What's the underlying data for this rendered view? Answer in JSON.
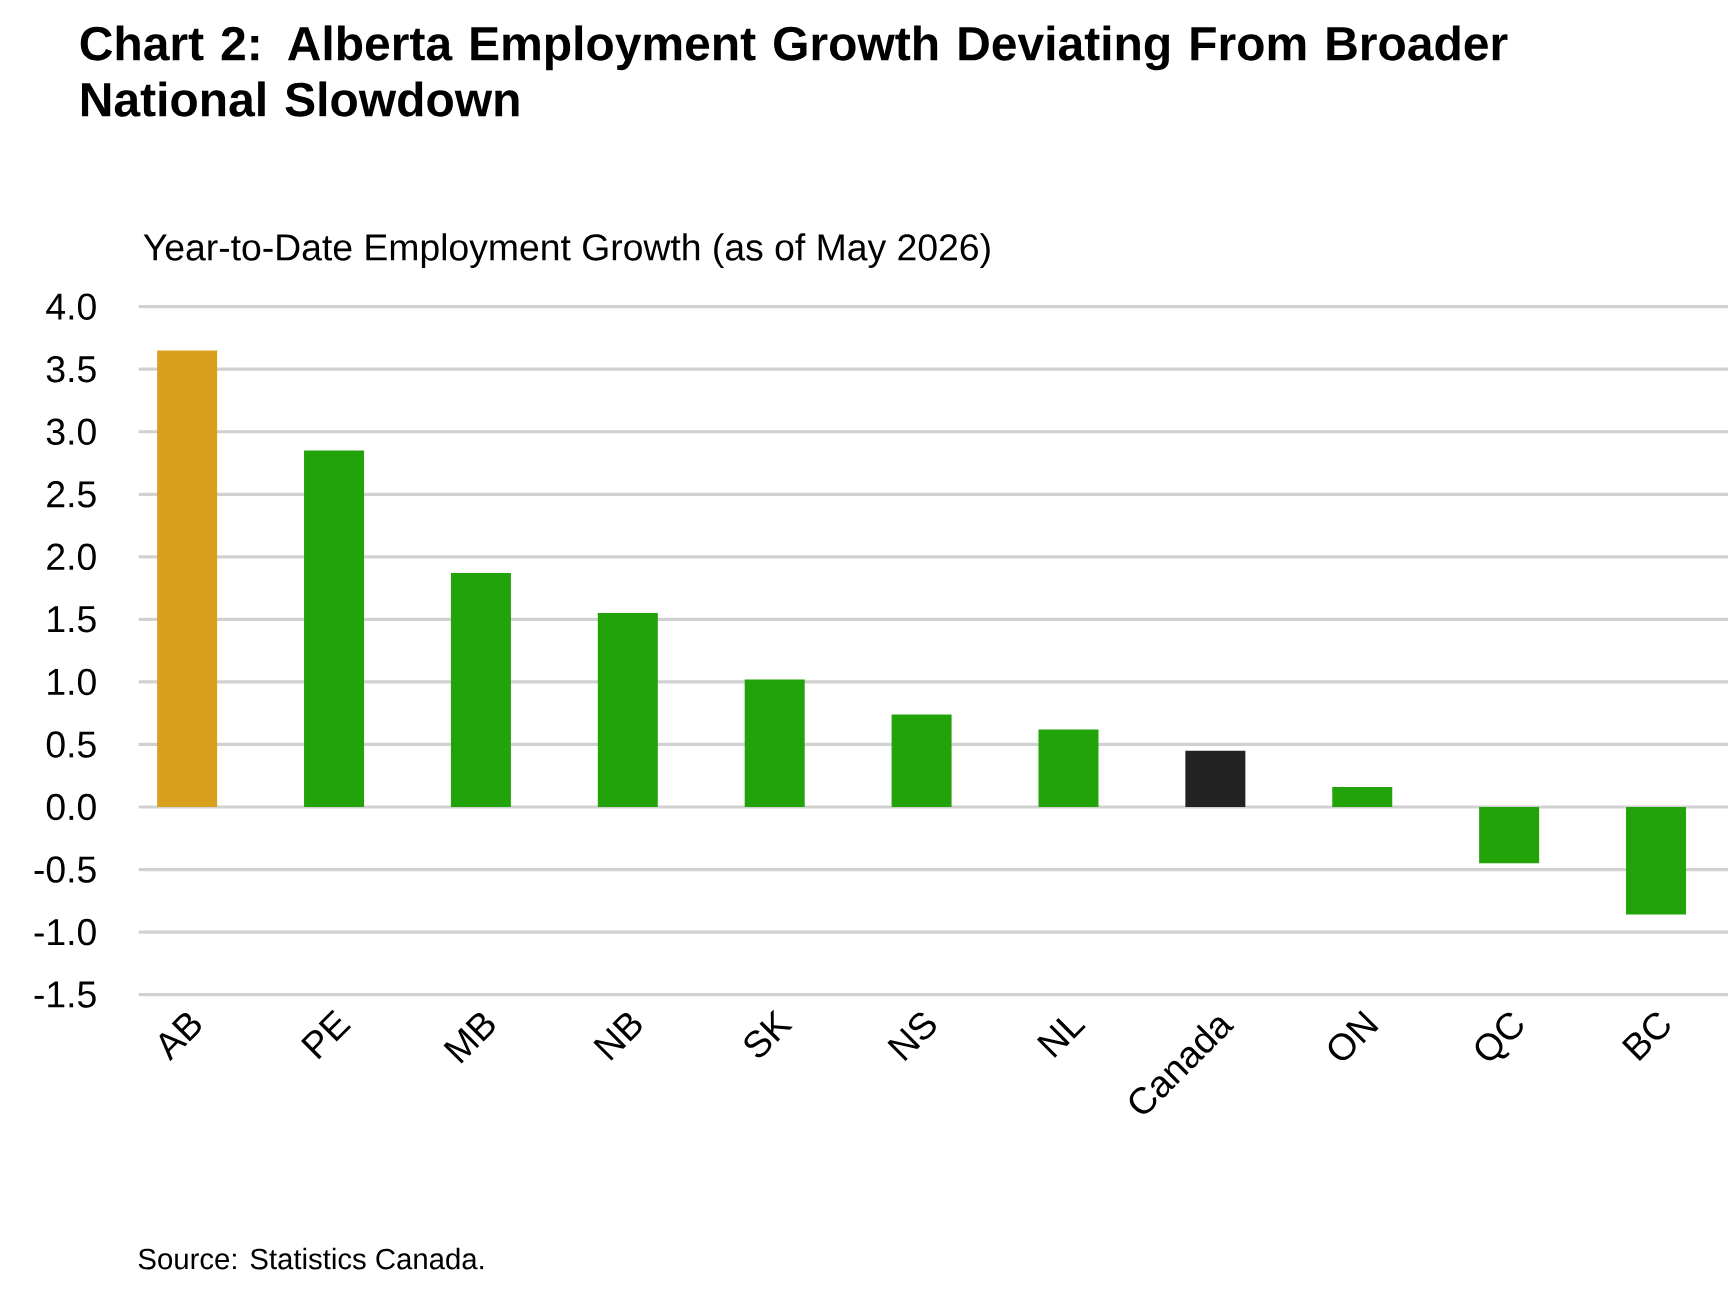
{
  "chart_data": {
    "type": "bar",
    "title": "Chart 2: Alberta Employment Growth Deviating From Broader National Slowdown",
    "ylabel": "Year-to-Date Employment Growth (as of May 2026)",
    "categories": [
      "AB",
      "PE",
      "MB",
      "NB",
      "SK",
      "NS",
      "NL",
      "Canada",
      "ON",
      "QC",
      "BC"
    ],
    "values": [
      3.65,
      2.85,
      1.87,
      1.55,
      1.02,
      0.74,
      0.62,
      0.45,
      0.16,
      -0.45,
      -0.86
    ],
    "colors": [
      "#d9a01e",
      "#22a30a",
      "#22a30a",
      "#22a30a",
      "#22a30a",
      "#22a30a",
      "#22a30a",
      "#222222",
      "#22a30a",
      "#22a30a",
      "#22a30a"
    ],
    "ylim": [
      -1.5,
      4.0
    ],
    "yticks": [
      {
        "value": -1.5,
        "label": "-1.5"
      },
      {
        "value": -1.0,
        "label": "-1.0"
      },
      {
        "value": -0.5,
        "label": "-0.5"
      },
      {
        "value": 0.0,
        "label": "0.0"
      },
      {
        "value": 0.5,
        "label": "0.5"
      },
      {
        "value": 1.0,
        "label": "1.0"
      },
      {
        "value": 1.5,
        "label": "1.5"
      },
      {
        "value": 2.0,
        "label": "2.0"
      },
      {
        "value": 2.5,
        "label": "2.5"
      },
      {
        "value": 3.0,
        "label": "3.0"
      },
      {
        "value": 3.5,
        "label": "3.5"
      },
      {
        "value": 4.0,
        "label": "4.0"
      }
    ],
    "grid": "y",
    "annotations": [
      "Source: Statistics Canada."
    ]
  }
}
